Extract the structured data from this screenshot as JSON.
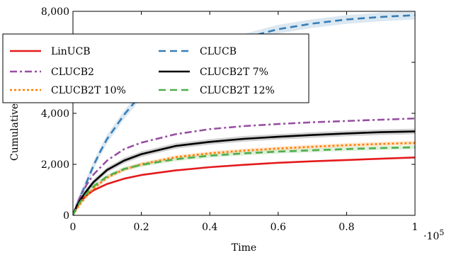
{
  "chart_data": {
    "type": "line",
    "xlabel": "Time",
    "ylabel": "Cumulative Regret",
    "x_multiplier_label": "·10",
    "x_multiplier_exponent": "5",
    "xlim": [
      0,
      1.0
    ],
    "ylim": [
      0,
      8000
    ],
    "x_ticks": [
      {
        "value": 0,
        "label": "0"
      },
      {
        "value": 0.2,
        "label": "0.2"
      },
      {
        "value": 0.4,
        "label": "0.4"
      },
      {
        "value": 0.6,
        "label": "0.6"
      },
      {
        "value": 0.8,
        "label": "0.8"
      },
      {
        "value": 1.0,
        "label": "1"
      }
    ],
    "y_ticks": [
      {
        "value": 0,
        "label": "0"
      },
      {
        "value": 2000,
        "label": "2,000"
      },
      {
        "value": 4000,
        "label": "4,000"
      },
      {
        "value": 6000,
        "label": "6,000"
      },
      {
        "value": 8000,
        "label": "8,000"
      }
    ],
    "legend_position": "upper-left",
    "series": [
      {
        "name": "LinUCB",
        "color": "#e41a1c",
        "dash": "solid",
        "band": 0,
        "x": [
          0,
          0.01,
          0.02,
          0.04,
          0.06,
          0.1,
          0.15,
          0.2,
          0.3,
          0.4,
          0.5,
          0.6,
          0.7,
          0.8,
          0.9,
          1.0
        ],
        "y": [
          0,
          300,
          520,
          780,
          980,
          1230,
          1440,
          1580,
          1760,
          1890,
          1980,
          2060,
          2120,
          2170,
          2220,
          2270
        ]
      },
      {
        "name": "CLUCB",
        "color": "#377eb8",
        "dash": "dashed",
        "band": 170,
        "x": [
          0,
          0.02,
          0.04,
          0.06,
          0.08,
          0.1,
          0.15,
          0.2,
          0.25,
          0.3,
          0.4,
          0.5,
          0.6,
          0.7,
          0.8,
          0.9,
          1.0
        ],
        "y": [
          0,
          700,
          1300,
          1950,
          2500,
          3000,
          3950,
          4750,
          5350,
          5800,
          6500,
          6950,
          7300,
          7520,
          7680,
          7780,
          7850
        ]
      },
      {
        "name": "CLUCB2",
        "color": "#984ea3",
        "dash": "dashdot",
        "band": 0,
        "x": [
          0,
          0.01,
          0.02,
          0.04,
          0.06,
          0.1,
          0.15,
          0.2,
          0.3,
          0.4,
          0.5,
          0.6,
          0.7,
          0.8,
          0.9,
          1.0
        ],
        "y": [
          0,
          380,
          700,
          1200,
          1600,
          2150,
          2600,
          2850,
          3180,
          3380,
          3500,
          3580,
          3650,
          3700,
          3750,
          3800
        ]
      },
      {
        "name": "CLUCB2T 7%",
        "color": "#000000",
        "dash": "solid",
        "band": 110,
        "x": [
          0,
          0.01,
          0.02,
          0.04,
          0.06,
          0.1,
          0.15,
          0.2,
          0.3,
          0.4,
          0.5,
          0.6,
          0.7,
          0.8,
          0.9,
          1.0
        ],
        "y": [
          0,
          330,
          580,
          960,
          1300,
          1780,
          2150,
          2400,
          2720,
          2880,
          3000,
          3080,
          3150,
          3210,
          3260,
          3290
        ]
      },
      {
        "name": "CLUCB2T 10%",
        "color": "#ff7f00",
        "dash": "dotted",
        "band": 80,
        "x": [
          0,
          0.01,
          0.02,
          0.04,
          0.06,
          0.1,
          0.15,
          0.2,
          0.3,
          0.4,
          0.5,
          0.6,
          0.7,
          0.8,
          0.9,
          1.0
        ],
        "y": [
          0,
          230,
          420,
          770,
          1050,
          1480,
          1800,
          2000,
          2280,
          2430,
          2540,
          2620,
          2690,
          2750,
          2800,
          2840
        ]
      },
      {
        "name": "CLUCB2T 12%",
        "color": "#4daf4a",
        "dash": "dashed",
        "band": 80,
        "x": [
          0,
          0.01,
          0.02,
          0.04,
          0.06,
          0.1,
          0.15,
          0.2,
          0.3,
          0.4,
          0.5,
          0.6,
          0.7,
          0.8,
          0.9,
          1.0
        ],
        "y": [
          0,
          270,
          500,
          860,
          1130,
          1530,
          1820,
          1980,
          2200,
          2340,
          2430,
          2500,
          2550,
          2600,
          2640,
          2670
        ]
      }
    ]
  }
}
